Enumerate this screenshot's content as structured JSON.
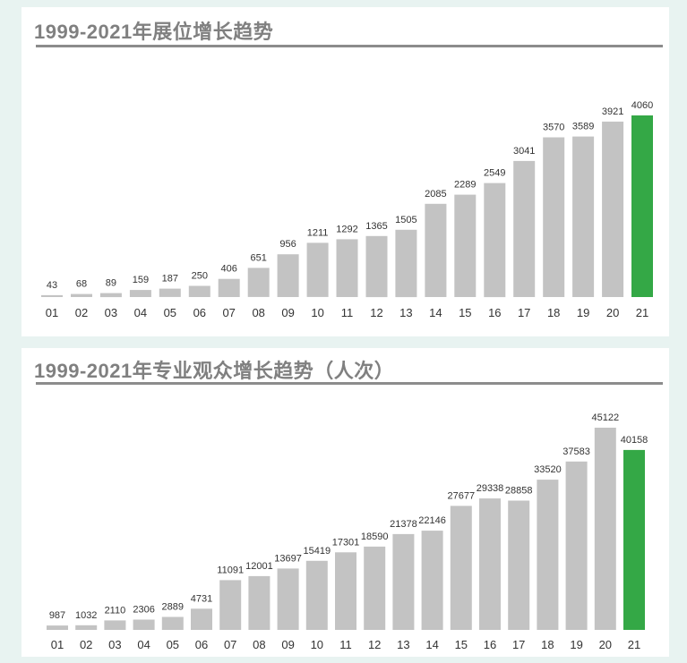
{
  "charts": [
    {
      "title": "1999-2021年展位增长趋势"
    },
    {
      "title": "1999-2021年专业观众增长趋势（人次）"
    }
  ],
  "colors": {
    "bar": "#c3c3c3",
    "highlight": "#34a846",
    "background": "#e8f3f1",
    "panel": "#ffffff"
  },
  "chart_data": [
    {
      "type": "bar",
      "title": "1999-2021年展位增长趋势",
      "categories": [
        "01",
        "02",
        "03",
        "04",
        "05",
        "06",
        "07",
        "08",
        "09",
        "10",
        "11",
        "12",
        "13",
        "14",
        "15",
        "16",
        "17",
        "18",
        "19",
        "20",
        "21"
      ],
      "values": [
        43,
        68,
        89,
        159,
        187,
        250,
        406,
        651,
        956,
        1211,
        1292,
        1365,
        1505,
        2085,
        2289,
        2549,
        3041,
        3570,
        3589,
        3921,
        4060
      ],
      "highlight_index": 20,
      "ylim": [
        0,
        4060
      ],
      "grid": false,
      "data_labels": true
    },
    {
      "type": "bar",
      "title": "1999-2021年专业观众增长趋势（人次）",
      "categories": [
        "01",
        "02",
        "03",
        "04",
        "05",
        "06",
        "07",
        "08",
        "09",
        "10",
        "11",
        "12",
        "13",
        "14",
        "15",
        "16",
        "17",
        "18",
        "19",
        "20",
        "21"
      ],
      "values": [
        987,
        1032,
        2110,
        2306,
        2889,
        4731,
        11091,
        12001,
        13697,
        15419,
        17301,
        18590,
        21378,
        22146,
        27677,
        29338,
        28858,
        33520,
        37583,
        45122,
        40158
      ],
      "highlight_index": 20,
      "ylim": [
        0,
        45122
      ],
      "grid": false,
      "data_labels": true
    }
  ]
}
